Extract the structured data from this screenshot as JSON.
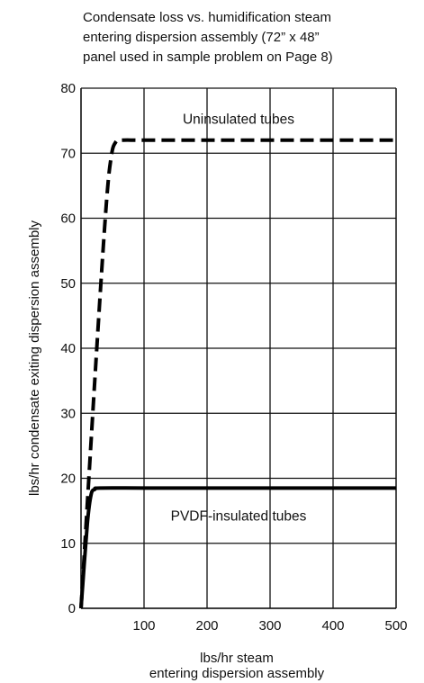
{
  "chart_data": {
    "type": "line",
    "title_lines": [
      "Condensate loss vs. humidification steam",
      "entering dispersion assembly (72” x 48”",
      "panel used in sample problem on Page 8)"
    ],
    "xlabel_lines": [
      "lbs/hr steam",
      "entering dispersion assembly"
    ],
    "ylabel": "lbs/hr condensate exiting dispersion assembly",
    "xlim": [
      0,
      500
    ],
    "ylim": [
      0,
      80
    ],
    "x_ticks": [
      100,
      200,
      300,
      400,
      500
    ],
    "y_ticks": [
      0,
      10,
      20,
      30,
      40,
      50,
      60,
      70,
      80
    ],
    "grid": true,
    "series": [
      {
        "name": "Uninsulated tubes",
        "style": "dashed",
        "x": [
          0,
          25,
          40,
          48,
          55,
          65,
          100,
          200,
          300,
          400,
          500
        ],
        "y": [
          0,
          40,
          62,
          69.5,
          71.7,
          72,
          72,
          72,
          72,
          72,
          72
        ]
      },
      {
        "name": "PVDF-insulated tubes",
        "style": "solid",
        "x": [
          0,
          10,
          16,
          22,
          30,
          100,
          200,
          300,
          400,
          500
        ],
        "y": [
          0,
          13,
          17.5,
          18.3,
          18.5,
          18.5,
          18.5,
          18.5,
          18.5,
          18.5
        ]
      }
    ],
    "annotations": [
      {
        "text": "Uninsulated tubes",
        "x": 250,
        "y": 75.2
      },
      {
        "text": "PVDF-insulated tubes",
        "x": 250,
        "y": 14.2
      }
    ]
  }
}
